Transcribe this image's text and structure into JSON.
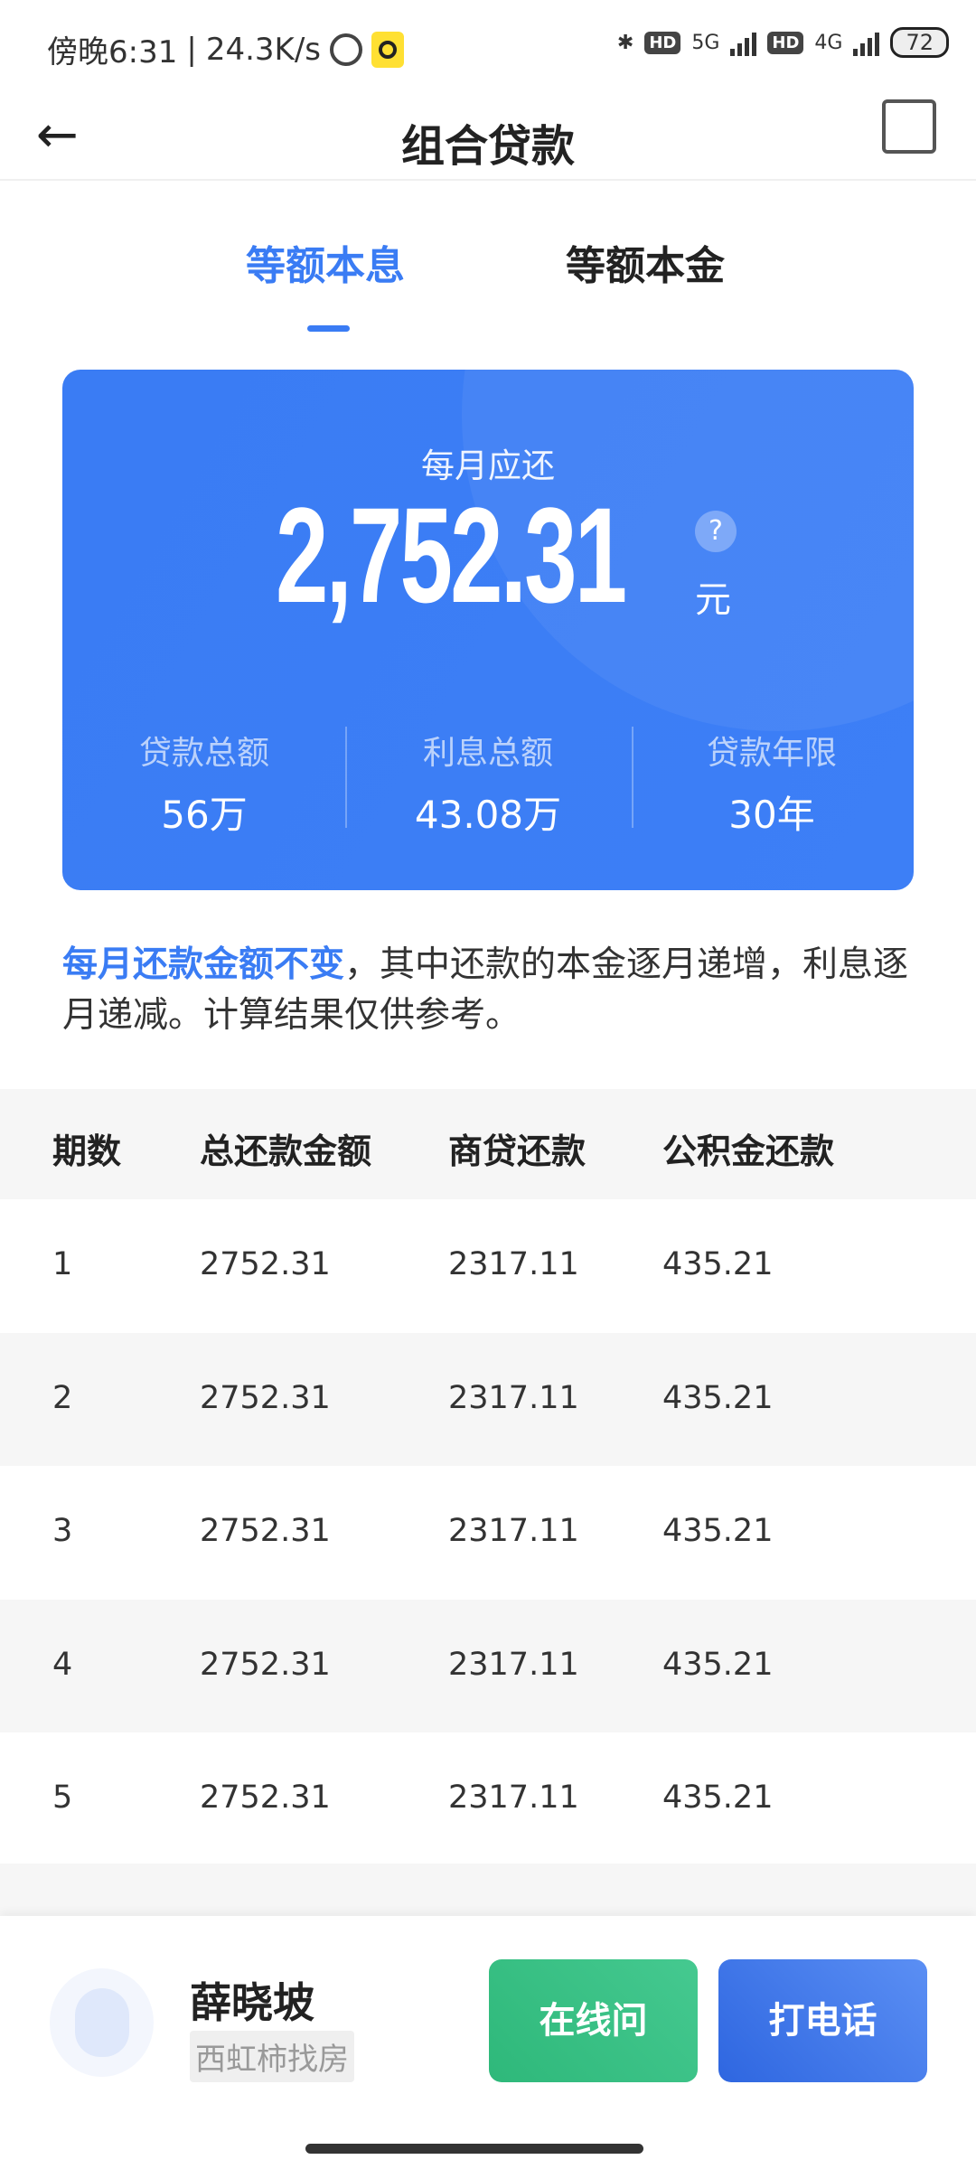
{
  "status_bar": {
    "time": "傍晚6:31",
    "speed": "24.3K/s",
    "net1": "5G",
    "net2": "4G",
    "hd": "HD",
    "battery": "72"
  },
  "header": {
    "title": "组合贷款"
  },
  "tabs": [
    {
      "label": "等额本息",
      "active": true
    },
    {
      "label": "等额本金",
      "active": false
    }
  ],
  "summary": {
    "label": "每月应还",
    "amount": "2,752.31",
    "unit": "元",
    "help": "?",
    "stats": [
      {
        "label": "贷款总额",
        "value": "56万"
      },
      {
        "label": "利息总额",
        "value": "43.08万"
      },
      {
        "label": "贷款年限",
        "value": "30年"
      }
    ]
  },
  "description": {
    "highlight": "每月还款金额不变",
    "rest": "，其中还款的本金逐月递增，利息逐月递减。计算结果仅供参考。"
  },
  "table": {
    "headers": [
      "期数",
      "总还款金额",
      "商贷还款",
      "公积金还款"
    ],
    "rows": [
      [
        "1",
        "2752.31",
        "2317.11",
        "435.21"
      ],
      [
        "2",
        "2752.31",
        "2317.11",
        "435.21"
      ],
      [
        "3",
        "2752.31",
        "2317.11",
        "435.21"
      ],
      [
        "4",
        "2752.31",
        "2317.11",
        "435.21"
      ],
      [
        "5",
        "2752.31",
        "2317.11",
        "435.21"
      ]
    ]
  },
  "agent": {
    "name": "薛晓坡",
    "tag": "西虹柿找房",
    "chat_label": "在线问",
    "call_label": "打电话"
  },
  "colors": {
    "accent": "#3a7cf4",
    "green": "#2eb87a"
  }
}
